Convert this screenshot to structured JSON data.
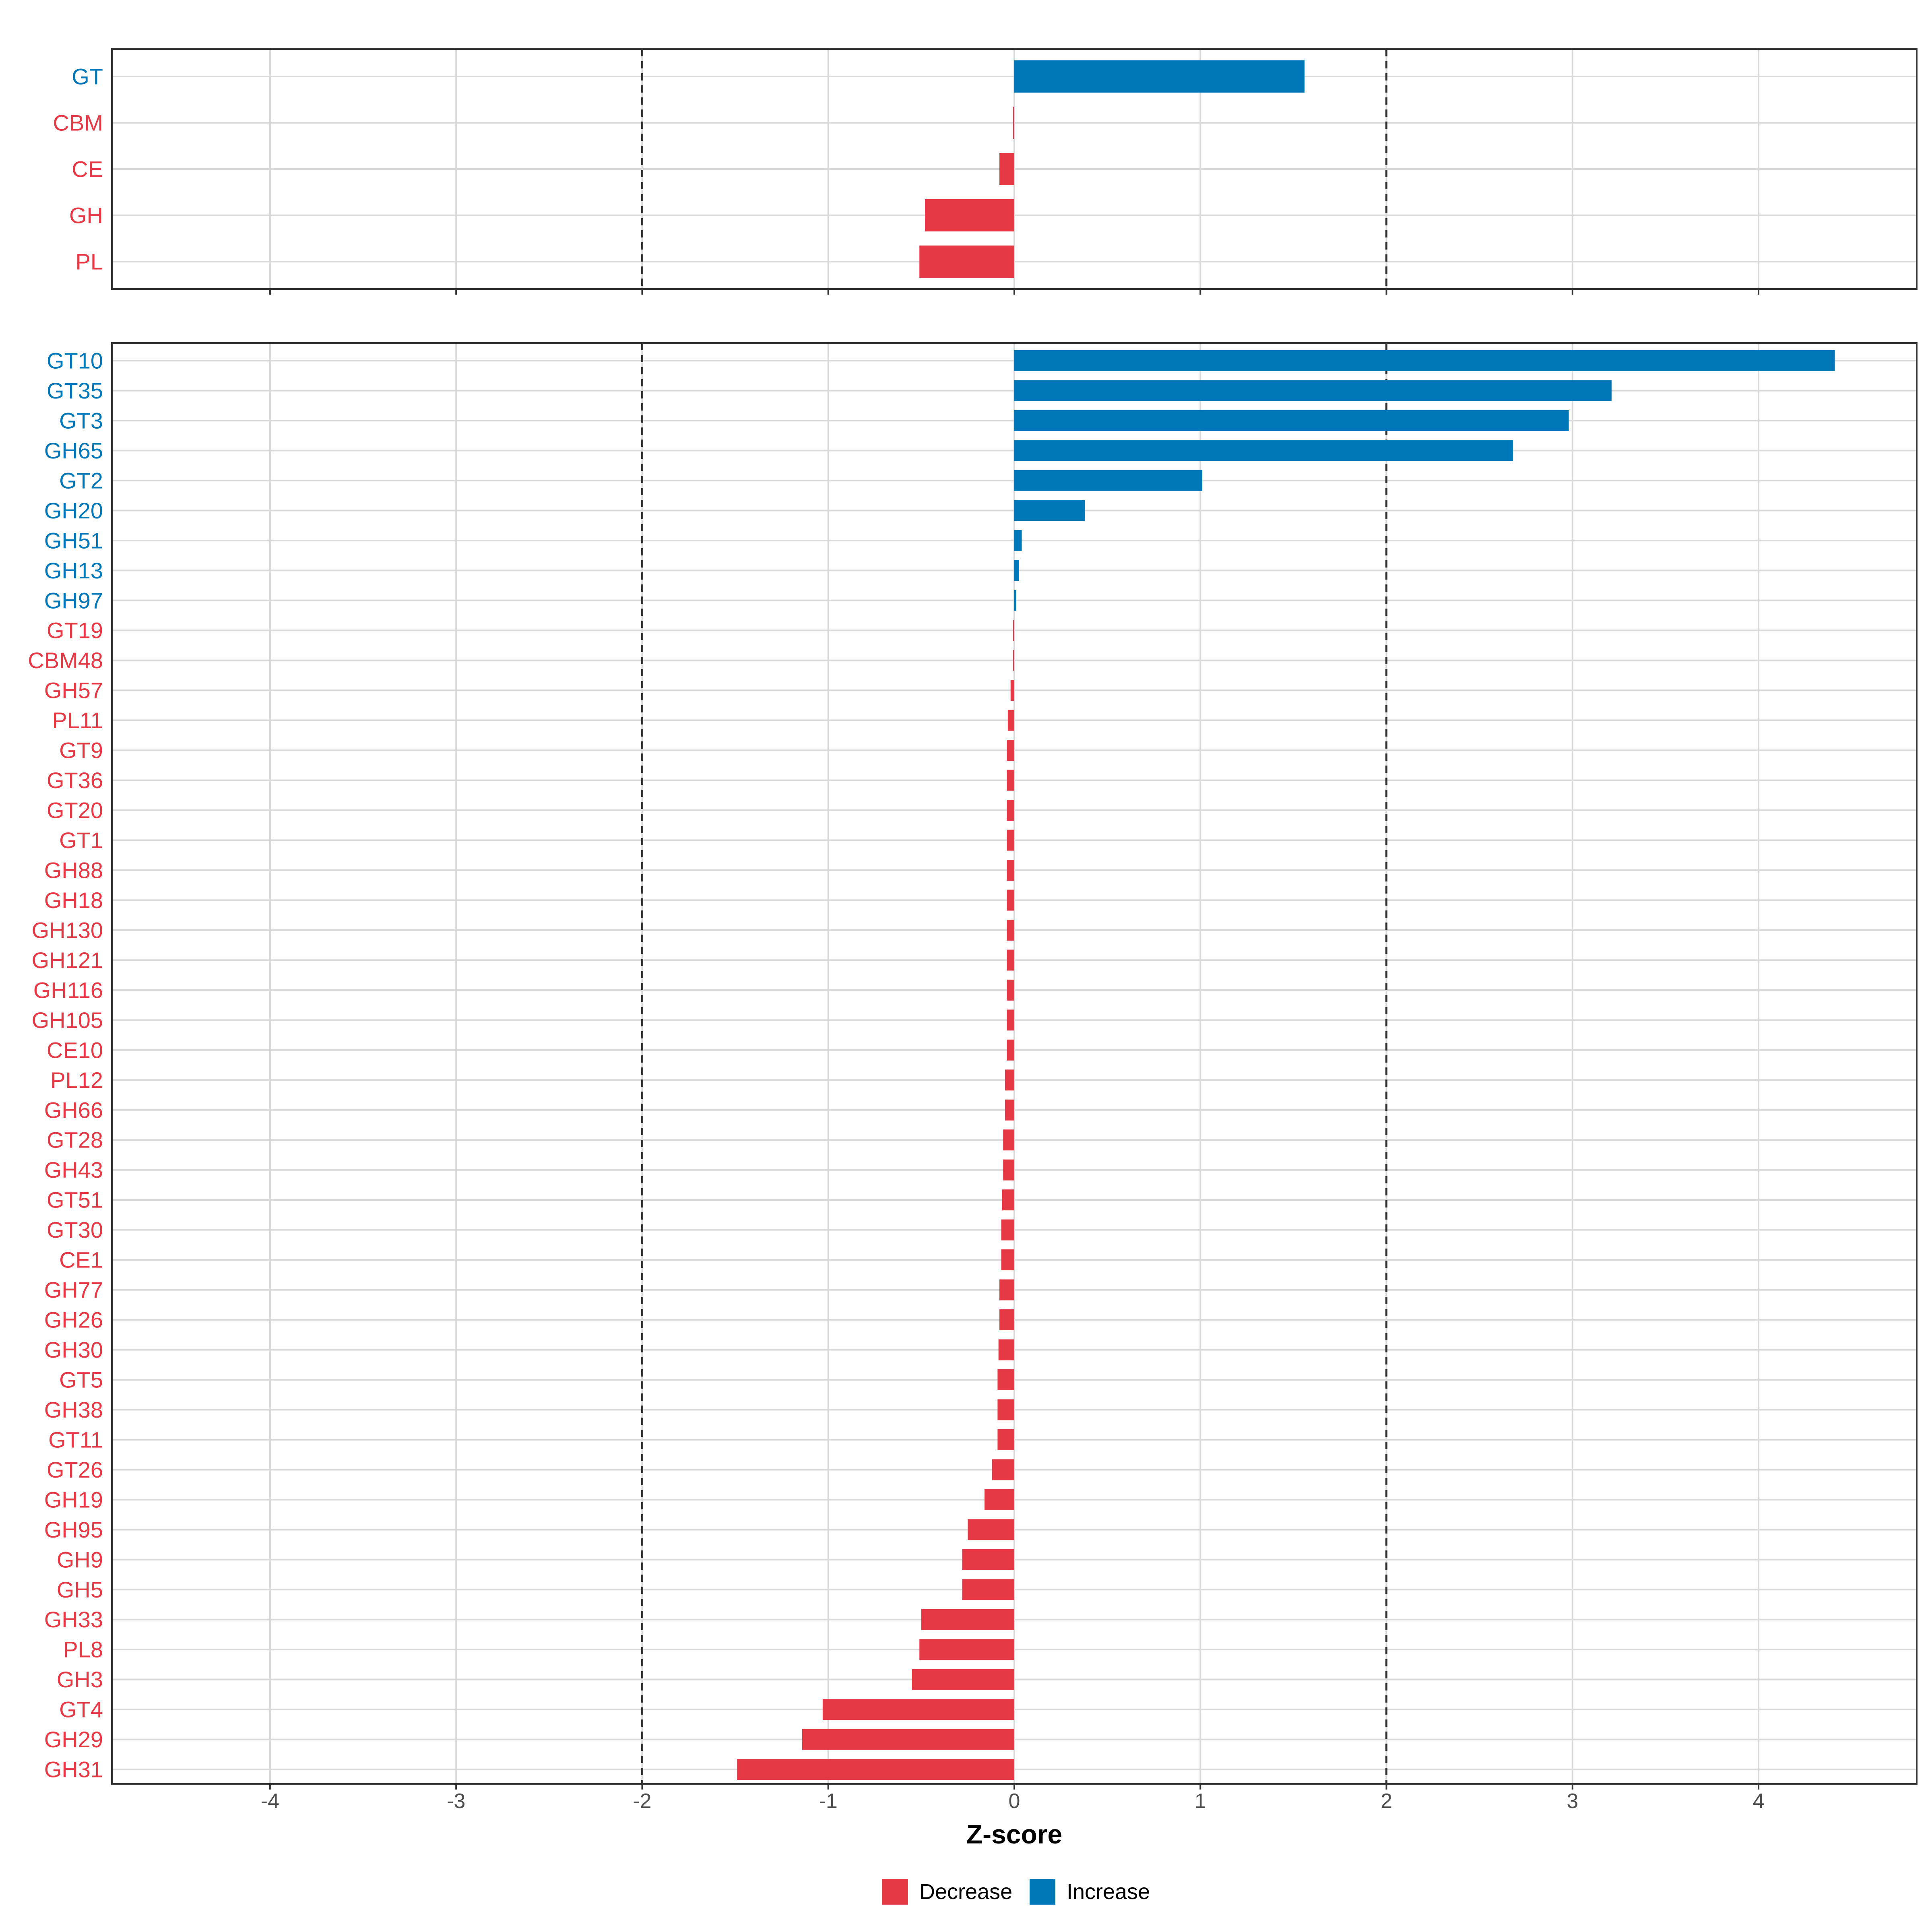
{
  "colors": {
    "decrease": "#E63946",
    "increase": "#0077B6",
    "grid": "#D9D9D9",
    "frame": "#333333",
    "ref_line": "#333333"
  },
  "legend": [
    {
      "key": "decrease",
      "label": "Decrease"
    },
    {
      "key": "increase",
      "label": "Increase"
    }
  ],
  "chart_data": [
    {
      "type": "bar",
      "orientation": "horizontal",
      "panel": "top",
      "categories": [
        "GT",
        "CBM",
        "CE",
        "GH",
        "PL"
      ],
      "values": [
        1.56,
        -0.003,
        -0.08,
        -0.48,
        -0.51
      ],
      "direction": [
        "increase",
        "decrease",
        "decrease",
        "decrease",
        "decrease"
      ],
      "xlim": [
        -4.85,
        4.85
      ],
      "reference_lines": [
        -2,
        2
      ],
      "grid": true
    },
    {
      "type": "bar",
      "orientation": "horizontal",
      "panel": "bottom",
      "categories": [
        "GT10",
        "GT35",
        "GT3",
        "GH65",
        "GT2",
        "GH20",
        "GH51",
        "GH13",
        "GH97",
        "GT19",
        "CBM48",
        "GH57",
        "PL11",
        "GT9",
        "GT36",
        "GT20",
        "GT1",
        "GH88",
        "GH18",
        "GH130",
        "GH121",
        "GH116",
        "GH105",
        "CE10",
        "PL12",
        "GH66",
        "GT28",
        "GH43",
        "GT51",
        "GT30",
        "CE1",
        "GH77",
        "GH26",
        "GH30",
        "GT5",
        "GH38",
        "GT11",
        "GT26",
        "GH19",
        "GH95",
        "GH9",
        "GH5",
        "GH33",
        "PL8",
        "GH3",
        "GT4",
        "GH29",
        "GH31"
      ],
      "values": [
        4.41,
        3.21,
        2.98,
        2.68,
        1.01,
        0.38,
        0.04,
        0.025,
        0.01,
        -0.001,
        -0.005,
        -0.02,
        -0.035,
        -0.04,
        -0.04,
        -0.04,
        -0.04,
        -0.04,
        -0.04,
        -0.04,
        -0.04,
        -0.04,
        -0.04,
        -0.04,
        -0.05,
        -0.05,
        -0.06,
        -0.06,
        -0.065,
        -0.07,
        -0.07,
        -0.08,
        -0.08,
        -0.085,
        -0.09,
        -0.09,
        -0.09,
        -0.12,
        -0.16,
        -0.25,
        -0.28,
        -0.28,
        -0.5,
        -0.51,
        -0.55,
        -1.03,
        -1.14,
        -1.49
      ],
      "direction": [
        "increase",
        "increase",
        "increase",
        "increase",
        "increase",
        "increase",
        "increase",
        "increase",
        "increase",
        "decrease",
        "decrease",
        "decrease",
        "decrease",
        "decrease",
        "decrease",
        "decrease",
        "decrease",
        "decrease",
        "decrease",
        "decrease",
        "decrease",
        "decrease",
        "decrease",
        "decrease",
        "decrease",
        "decrease",
        "decrease",
        "decrease",
        "decrease",
        "decrease",
        "decrease",
        "decrease",
        "decrease",
        "decrease",
        "decrease",
        "decrease",
        "decrease",
        "decrease",
        "decrease",
        "decrease",
        "decrease",
        "decrease",
        "decrease",
        "decrease",
        "decrease",
        "decrease",
        "decrease",
        "decrease"
      ],
      "xlim": [
        -4.85,
        4.85
      ],
      "xticks": [
        -4,
        -3,
        -2,
        -1,
        0,
        1,
        2,
        3,
        4
      ],
      "xtick_labels": [
        "-4",
        "-3",
        "-2",
        "-1",
        "0",
        "1",
        "2",
        "3",
        "4"
      ],
      "xlabel": "Z-score",
      "reference_lines": [
        -2,
        2
      ],
      "grid": true
    }
  ]
}
